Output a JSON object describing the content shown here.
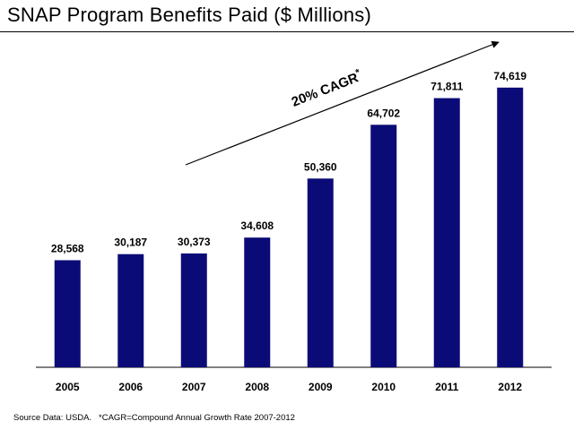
{
  "title": "SNAP Program Benefits Paid ($ Millions)",
  "footnote": "Source Data: USDA.   *CAGR=Compound Annual Growth Rate 2007-2012",
  "colors": {
    "bar": "#0b0b78",
    "text": "#000000",
    "axis": "#000000",
    "arrow": "#000000"
  },
  "chart_data": {
    "type": "bar",
    "title": "SNAP Program Benefits Paid ($ Millions)",
    "categories": [
      "2005",
      "2006",
      "2007",
      "2008",
      "2009",
      "2010",
      "2011",
      "2012"
    ],
    "values": [
      28568,
      30187,
      30373,
      34608,
      50360,
      64702,
      71811,
      74619
    ],
    "data_labels": [
      "28,568",
      "30,187",
      "30,373",
      "34,608",
      "50,360",
      "64,702",
      "71,811",
      "74,619"
    ],
    "xlabel": "",
    "ylabel": "",
    "ylim": [
      0,
      80000
    ],
    "grid": false,
    "legend": "none",
    "annotation": {
      "text": "20% CAGR",
      "superscript": "*",
      "from_category": "2007",
      "to_category": "2012"
    }
  }
}
